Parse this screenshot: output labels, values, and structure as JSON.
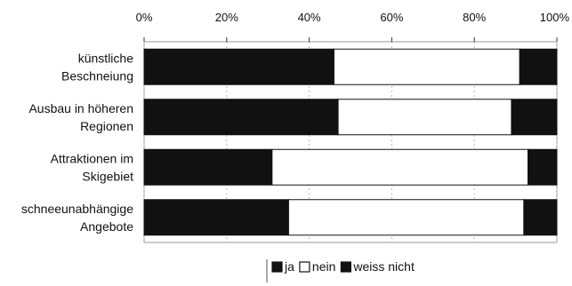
{
  "chart_data": {
    "type": "bar",
    "orientation": "horizontal",
    "stacked": "percent",
    "categories": [
      "künstliche Beschneiung",
      "Ausbau in höheren Regionen",
      "Attraktionen im Skigebiet",
      "schneeunabhängige Angebote"
    ],
    "category_lines": [
      [
        "künstliche",
        "Beschneiung"
      ],
      [
        "Ausbau in höheren",
        "Regionen"
      ],
      [
        "Attraktionen im",
        "Skigebiet"
      ],
      [
        "schneeunabhängige",
        "Angebote"
      ]
    ],
    "series": [
      {
        "name": "ja",
        "values": [
          46,
          47,
          31,
          35
        ],
        "color": "#111111"
      },
      {
        "name": "nein",
        "values": [
          45,
          42,
          62,
          57
        ],
        "color": "#ffffff"
      },
      {
        "name": "weiss nicht",
        "values": [
          9,
          11,
          7,
          8
        ],
        "color": "#111111"
      }
    ],
    "xlim": [
      0,
      100
    ],
    "x_ticks": [
      "0%",
      "20%",
      "40%",
      "60%",
      "80%",
      "100%"
    ],
    "x_axis_position": "top",
    "legend_placement": "bottom",
    "grid": true
  }
}
